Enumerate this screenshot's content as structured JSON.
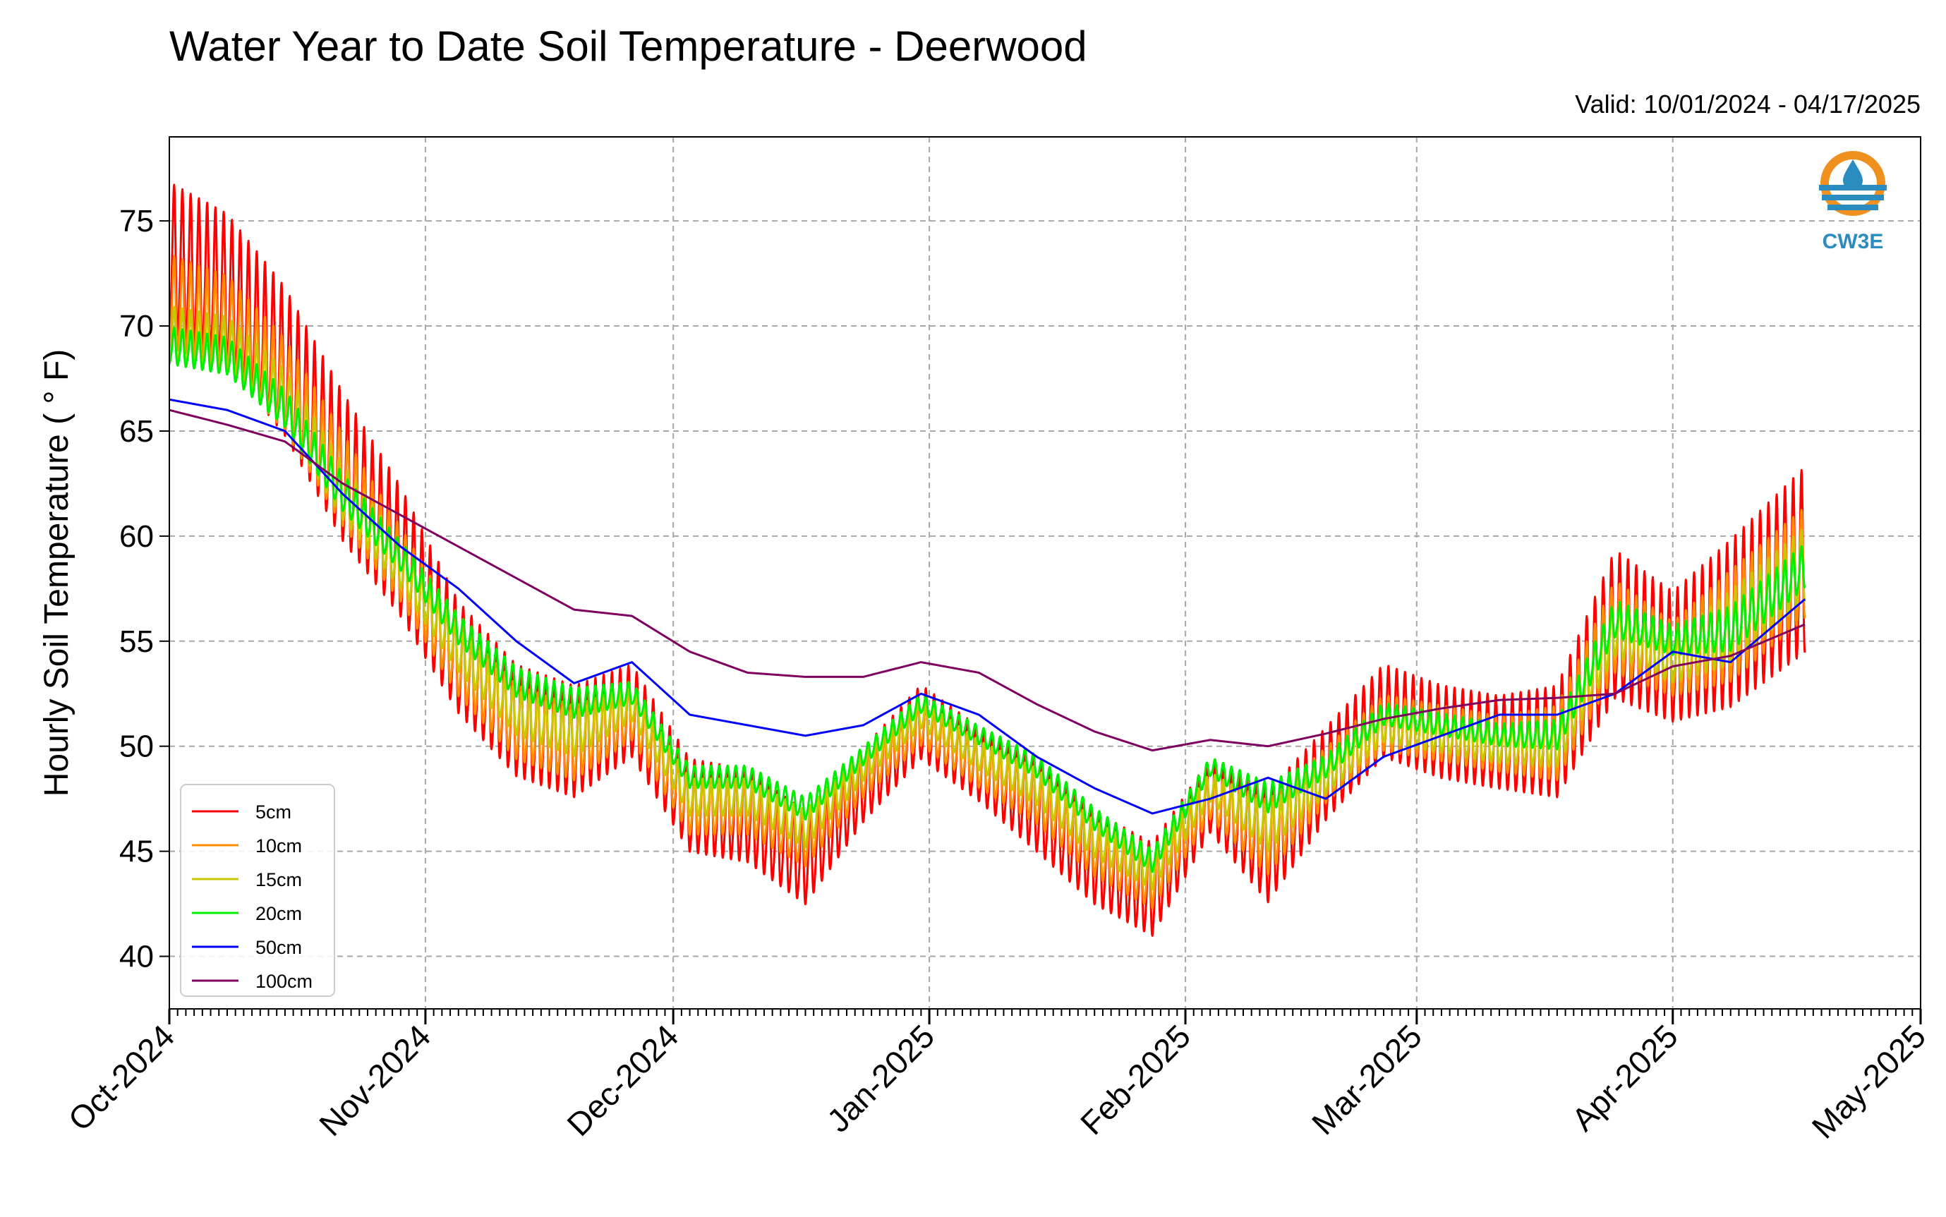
{
  "chart_data": {
    "type": "line",
    "title": "Water Year to Date Soil Temperature - Deerwood",
    "subtitle": "Valid: 10/01/2024 - 04/17/2025",
    "ylabel": "Hourly Soil Temperature ( ° F)",
    "xlabel": "",
    "ylim": [
      37.5,
      79
    ],
    "xlim": [
      "2024-10-01",
      "2025-05-01"
    ],
    "yticks": [
      40,
      45,
      50,
      55,
      60,
      65,
      70,
      75
    ],
    "xticks": [
      {
        "date": "2024-10-01",
        "label": "Oct-2024"
      },
      {
        "date": "2024-11-01",
        "label": "Nov-2024"
      },
      {
        "date": "2024-12-01",
        "label": "Dec-2024"
      },
      {
        "date": "2025-01-01",
        "label": "Jan-2025"
      },
      {
        "date": "2025-02-01",
        "label": "Feb-2025"
      },
      {
        "date": "2025-03-01",
        "label": "Mar-2025"
      },
      {
        "date": "2025-04-01",
        "label": "Apr-2025"
      },
      {
        "date": "2025-05-01",
        "label": "May-2025"
      }
    ],
    "grid": true,
    "legend_position": "lower-left",
    "series": [
      {
        "name": "5cm",
        "color": "#ff0000",
        "x": [
          "2024-10-01",
          "2024-10-08",
          "2024-10-15",
          "2024-10-22",
          "2024-10-29",
          "2024-11-05",
          "2024-11-12",
          "2024-11-19",
          "2024-11-26",
          "2024-12-03",
          "2024-12-10",
          "2024-12-17",
          "2024-12-24",
          "2024-12-31",
          "2025-01-07",
          "2025-01-14",
          "2025-01-21",
          "2025-01-28",
          "2025-02-04",
          "2025-02-11",
          "2025-02-18",
          "2025-02-25",
          "2025-03-04",
          "2025-03-11",
          "2025-03-18",
          "2025-03-25",
          "2025-04-01",
          "2025-04-08",
          "2025-04-17"
        ],
        "y": [
          73,
          71.5,
          68,
          63,
          59,
          54,
          51,
          50,
          51.5,
          47,
          46.5,
          44.5,
          48,
          51,
          49,
          47,
          44.5,
          43,
          47.5,
          45,
          48.5,
          51.5,
          50.5,
          50,
          50,
          55.5,
          54,
          55.5,
          58.5
        ],
        "amp": [
          4,
          4,
          4,
          4,
          3.5,
          3,
          3,
          3,
          2.5,
          2.5,
          2.5,
          2.5,
          2,
          2,
          2,
          2.5,
          2.5,
          2.5,
          2,
          3,
          2.5,
          2.5,
          2.5,
          2.5,
          3,
          4,
          3.5,
          4.5,
          5
        ]
      },
      {
        "name": "10cm",
        "color": "#ff8c00",
        "x": [
          "2024-10-01",
          "2024-10-08",
          "2024-10-15",
          "2024-10-22",
          "2024-10-29",
          "2024-11-05",
          "2024-11-12",
          "2024-11-19",
          "2024-11-26",
          "2024-12-03",
          "2024-12-10",
          "2024-12-17",
          "2024-12-24",
          "2024-12-31",
          "2025-01-07",
          "2025-01-14",
          "2025-01-21",
          "2025-01-28",
          "2025-02-04",
          "2025-02-11",
          "2025-02-18",
          "2025-02-25",
          "2025-03-04",
          "2025-03-11",
          "2025-03-18",
          "2025-03-25",
          "2025-04-01",
          "2025-04-08",
          "2025-04-17"
        ],
        "y": [
          71,
          70,
          67,
          62.5,
          58.5,
          54,
          51,
          50,
          51.5,
          47,
          47,
          45.5,
          48.5,
          51,
          49,
          47.5,
          45,
          43.5,
          47.5,
          45.5,
          48.5,
          51,
          50.5,
          50,
          50,
          55.5,
          54,
          55.5,
          58.5
        ],
        "amp": [
          2.5,
          2.5,
          2.5,
          2.5,
          2,
          2,
          2,
          2,
          1.5,
          1.5,
          1.5,
          1.5,
          1.2,
          1.2,
          1.2,
          1.5,
          1.5,
          1.5,
          1.2,
          2,
          1.5,
          1.5,
          1.5,
          1.5,
          2,
          2.5,
          2,
          3,
          3
        ]
      },
      {
        "name": "15cm",
        "color": "#c8c800",
        "x": [
          "2024-10-01",
          "2024-10-08",
          "2024-10-15",
          "2024-10-22",
          "2024-10-29",
          "2024-11-05",
          "2024-11-12",
          "2024-11-19",
          "2024-11-26",
          "2024-12-03",
          "2024-12-10",
          "2024-12-17",
          "2024-12-24",
          "2024-12-31",
          "2025-01-07",
          "2025-01-14",
          "2025-01-21",
          "2025-01-28",
          "2025-02-04",
          "2025-02-11",
          "2025-02-18",
          "2025-02-25",
          "2025-03-04",
          "2025-03-11",
          "2025-03-18",
          "2025-03-25",
          "2025-04-01",
          "2025-04-08",
          "2025-04-17"
        ],
        "y": [
          69.5,
          69,
          66.5,
          62,
          58.5,
          54.5,
          51.5,
          50.5,
          52,
          47.5,
          47.5,
          46,
          49,
          51.5,
          49.5,
          48,
          45.5,
          44,
          48,
          46,
          48.5,
          51,
          50.5,
          50,
          50,
          55.5,
          54,
          55.5,
          58.5
        ],
        "amp": [
          1.5,
          1.5,
          1.5,
          1.5,
          1.2,
          1.2,
          1.2,
          1.2,
          1,
          1,
          1,
          1,
          0.8,
          0.8,
          0.8,
          1,
          1,
          1,
          0.8,
          1.2,
          1,
          1,
          1,
          1,
          1.2,
          1.5,
          1.2,
          2,
          2
        ]
      },
      {
        "name": "20cm",
        "color": "#00ee00",
        "x": [
          "2024-10-01",
          "2024-10-08",
          "2024-10-15",
          "2024-10-22",
          "2024-10-29",
          "2024-11-05",
          "2024-11-12",
          "2024-11-19",
          "2024-11-26",
          "2024-12-03",
          "2024-12-10",
          "2024-12-17",
          "2024-12-24",
          "2024-12-31",
          "2025-01-07",
          "2025-01-14",
          "2025-01-21",
          "2025-01-28",
          "2025-02-04",
          "2025-02-11",
          "2025-02-18",
          "2025-02-25",
          "2025-03-04",
          "2025-03-11",
          "2025-03-18",
          "2025-03-25",
          "2025-04-01",
          "2025-04-08",
          "2025-04-17"
        ],
        "y": [
          69,
          68.5,
          66,
          62,
          59,
          55.5,
          53,
          52,
          52.5,
          48.5,
          48.5,
          47,
          49.5,
          52,
          50.5,
          49,
          46.5,
          44.5,
          49,
          47.5,
          49,
          51.5,
          51,
          50.5,
          50.5,
          56,
          55,
          55.5,
          58.5
        ],
        "amp": [
          1,
          1,
          1,
          1,
          0.8,
          0.8,
          0.8,
          0.8,
          0.6,
          0.6,
          0.6,
          0.6,
          0.5,
          0.5,
          0.5,
          0.6,
          0.6,
          0.6,
          0.5,
          0.8,
          0.6,
          0.6,
          0.6,
          0.6,
          0.8,
          1,
          0.8,
          1.2,
          1.2
        ]
      },
      {
        "name": "50cm",
        "color": "#0000ff",
        "x": [
          "2024-10-01",
          "2024-10-08",
          "2024-10-15",
          "2024-10-22",
          "2024-10-29",
          "2024-11-05",
          "2024-11-12",
          "2024-11-19",
          "2024-11-26",
          "2024-12-03",
          "2024-12-10",
          "2024-12-17",
          "2024-12-24",
          "2024-12-31",
          "2025-01-07",
          "2025-01-14",
          "2025-01-21",
          "2025-01-28",
          "2025-02-04",
          "2025-02-11",
          "2025-02-18",
          "2025-02-25",
          "2025-03-04",
          "2025-03-11",
          "2025-03-18",
          "2025-03-25",
          "2025-04-01",
          "2025-04-08",
          "2025-04-17"
        ],
        "y": [
          66.5,
          66,
          65,
          62,
          59.5,
          57.5,
          55,
          53,
          54,
          51.5,
          51,
          50.5,
          51,
          52.5,
          51.5,
          49.5,
          48,
          46.8,
          47.5,
          48.5,
          47.5,
          49.5,
          50.5,
          51.5,
          51.5,
          52.5,
          54.5,
          54,
          57
        ],
        "amp": [
          0,
          0,
          0,
          0,
          0,
          0,
          0,
          0,
          0,
          0,
          0,
          0,
          0,
          0,
          0,
          0,
          0,
          0,
          0,
          0,
          0,
          0,
          0,
          0,
          0,
          0,
          0,
          0,
          0
        ]
      },
      {
        "name": "100cm",
        "color": "#800060",
        "x": [
          "2024-10-01",
          "2024-10-08",
          "2024-10-15",
          "2024-10-22",
          "2024-10-29",
          "2024-11-05",
          "2024-11-12",
          "2024-11-19",
          "2024-11-26",
          "2024-12-03",
          "2024-12-10",
          "2024-12-17",
          "2024-12-24",
          "2024-12-31",
          "2025-01-07",
          "2025-01-14",
          "2025-01-21",
          "2025-01-28",
          "2025-02-04",
          "2025-02-11",
          "2025-02-18",
          "2025-02-25",
          "2025-03-04",
          "2025-03-11",
          "2025-03-18",
          "2025-03-25",
          "2025-04-01",
          "2025-04-08",
          "2025-04-17"
        ],
        "y": [
          66,
          65.3,
          64.5,
          62.5,
          61,
          59.5,
          58,
          56.5,
          56.2,
          54.5,
          53.5,
          53.3,
          53.3,
          54,
          53.5,
          52,
          50.7,
          49.8,
          50.3,
          50,
          50.6,
          51.3,
          51.8,
          52.2,
          52.3,
          52.5,
          53.8,
          54.3,
          55.8
        ],
        "amp": [
          0,
          0,
          0,
          0,
          0,
          0,
          0,
          0,
          0,
          0,
          0,
          0,
          0,
          0,
          0,
          0,
          0,
          0,
          0,
          0,
          0,
          0,
          0,
          0,
          0,
          0,
          0,
          0,
          0
        ]
      }
    ]
  },
  "logo": {
    "text": "CW3E",
    "colors": {
      "ring": "#f0901e",
      "blue": "#2a8cbf",
      "text": "#2a8cbf"
    }
  }
}
